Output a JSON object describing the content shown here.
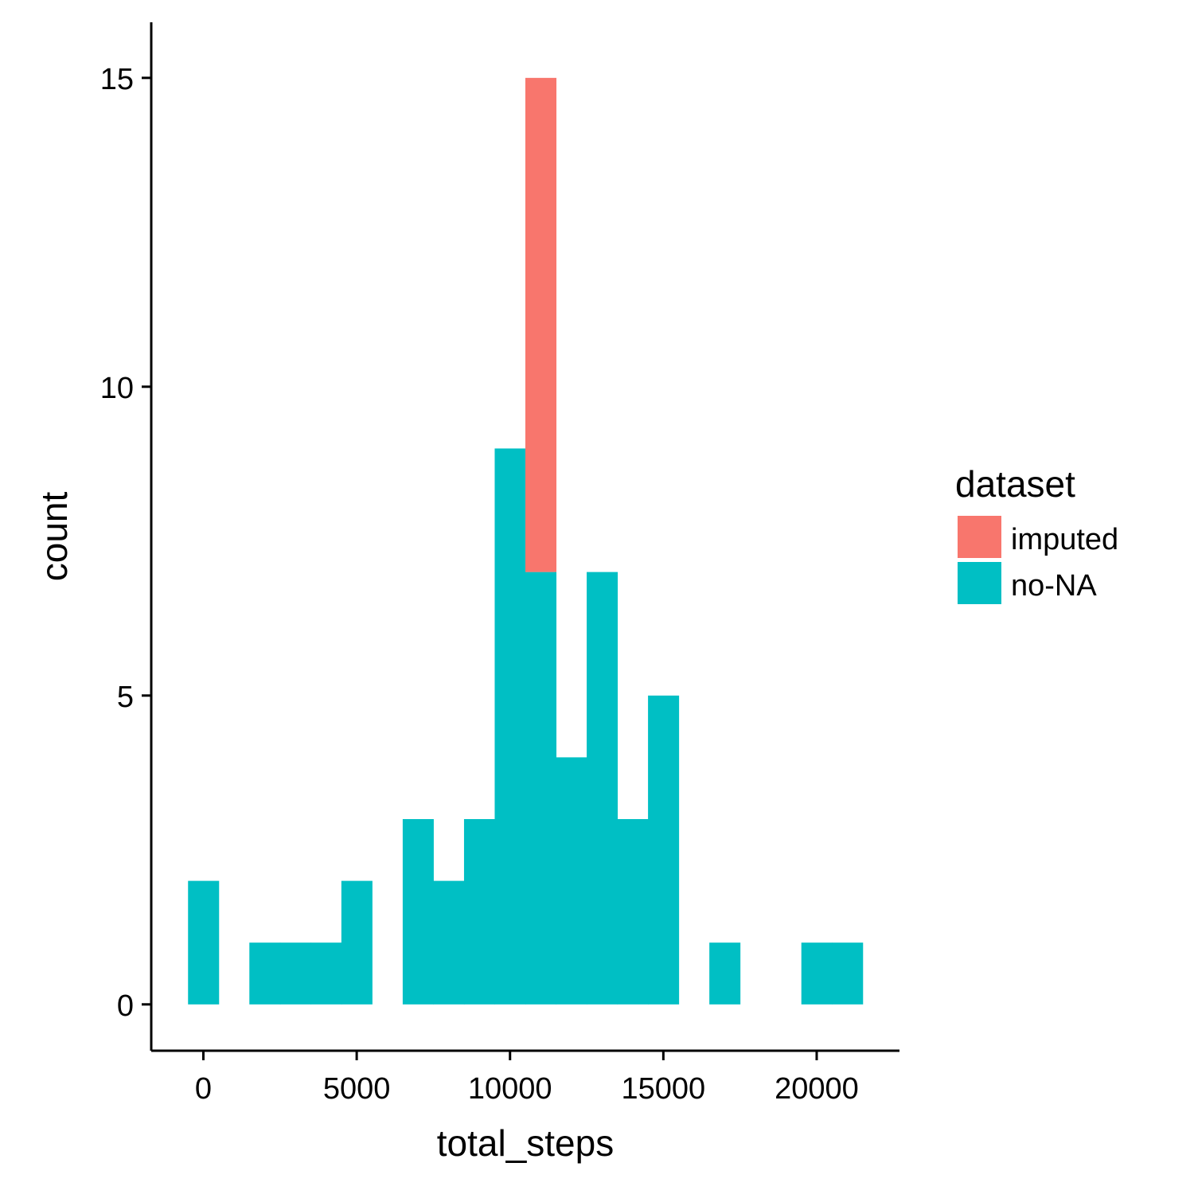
{
  "chart_data": {
    "type": "bar",
    "subtype": "stacked-histogram",
    "xlabel": "total_steps",
    "ylabel": "count",
    "x_ticks": [
      0,
      5000,
      10000,
      15000,
      20000
    ],
    "y_ticks": [
      0,
      5,
      10,
      15
    ],
    "xlim": [
      -1700,
      22700
    ],
    "ylim": [
      -0.75,
      15.9
    ],
    "bin_width": 1000,
    "bin_centers": [
      0,
      1000,
      2000,
      3000,
      4000,
      5000,
      6000,
      7000,
      8000,
      9000,
      10000,
      11000,
      12000,
      13000,
      14000,
      15000,
      16000,
      17000,
      18000,
      19000,
      20000,
      21000
    ],
    "series": [
      {
        "name": "imputed",
        "color": "#F8766D",
        "values": [
          0,
          0,
          0,
          0,
          0,
          0,
          0,
          0,
          0,
          0,
          0,
          8,
          0,
          0,
          0,
          0,
          0,
          0,
          0,
          0,
          0,
          0
        ]
      },
      {
        "name": "no-NA",
        "color": "#00BFC4",
        "values": [
          2,
          0,
          1,
          1,
          1,
          2,
          0,
          3,
          2,
          3,
          9,
          7,
          4,
          7,
          3,
          5,
          0,
          1,
          0,
          0,
          1,
          1
        ]
      }
    ],
    "stack_order": [
      "no-NA",
      "imputed"
    ],
    "legend": {
      "title": "dataset",
      "position": "right",
      "entries": [
        "imputed",
        "no-NA"
      ]
    },
    "grid": false
  }
}
